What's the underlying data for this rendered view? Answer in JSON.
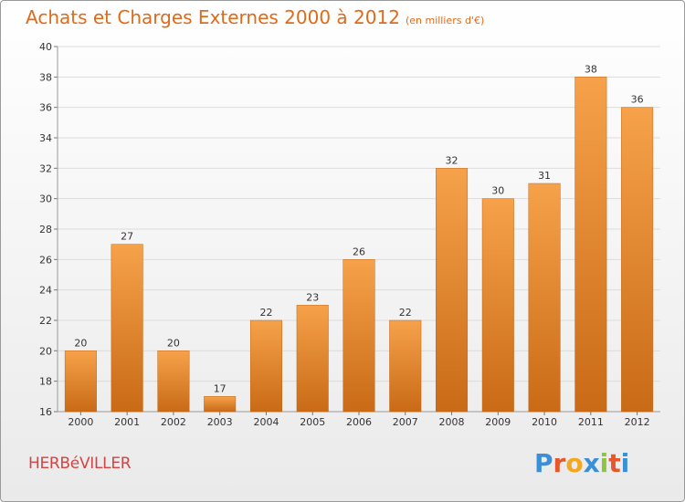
{
  "header": {
    "title": "Achats et Charges Externes 2000 à 2012",
    "unit": "(en milliers d'€)"
  },
  "commune": "HERBéVILLER",
  "brand": {
    "letters": [
      "P",
      "r",
      "o",
      "x",
      "i",
      "t",
      "i"
    ],
    "colors": [
      "#3a8fd6",
      "#e8572c",
      "#f2a81f",
      "#3a8fd6",
      "#8cc63f",
      "#e8572c",
      "#3a8fd6"
    ]
  },
  "colors": {
    "bar_top": "#f6a24a",
    "bar_bottom": "#c96a16",
    "title": "#df6a1a",
    "commune": "#d24545"
  },
  "chart_data": {
    "type": "bar",
    "categories": [
      "2000",
      "2001",
      "2002",
      "2003",
      "2004",
      "2005",
      "2006",
      "2007",
      "2008",
      "2009",
      "2010",
      "2011",
      "2012"
    ],
    "values": [
      20,
      27,
      20,
      17,
      22,
      23,
      26,
      22,
      32,
      30,
      31,
      38,
      36
    ],
    "title": "Achats et Charges Externes 2000 à 2012",
    "subtitle": "(en milliers d'€)",
    "xlabel": "",
    "ylabel": "",
    "ylim": [
      16,
      40
    ],
    "yticks": [
      16,
      18,
      20,
      22,
      24,
      26,
      28,
      30,
      32,
      34,
      36,
      38,
      40
    ],
    "grid": true
  }
}
